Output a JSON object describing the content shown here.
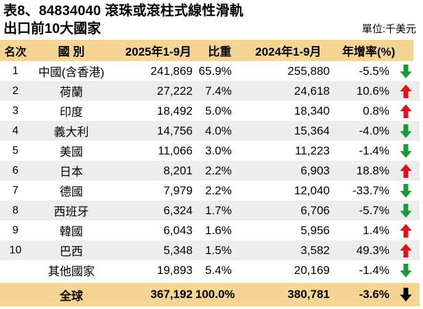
{
  "page": {
    "title_line1": "表8、84834040 滾珠或滾柱式線性滑軌",
    "title_line2": "出口前10大國家",
    "unit_label": "單位:千美元"
  },
  "colors": {
    "band_bg": "#F5D593",
    "stripe_bg": "#EDEDED",
    "up_arrow": "#E21219",
    "down_arrow": "#189A3C",
    "total_arrow": "#000000"
  },
  "chart_data": {
    "type": "table",
    "title": "表8、84834040 滾珠或滾柱式線性滑軌 出口前10大國家",
    "unit": "千美元",
    "columns": [
      "名次",
      "國 別",
      "2025年1-9月",
      "比重",
      "2024年1-9月",
      "年增率(%)"
    ],
    "rows": [
      {
        "rank": "1",
        "country": "中國(含香港)",
        "v2025": "241,869",
        "share": "65.9%",
        "v2024": "255,880",
        "yoy": "-5.5%",
        "trend": "down"
      },
      {
        "rank": "2",
        "country": "荷蘭",
        "v2025": "27,222",
        "share": "7.4%",
        "v2024": "24,618",
        "yoy": "10.6%",
        "trend": "up"
      },
      {
        "rank": "3",
        "country": "印度",
        "v2025": "18,492",
        "share": "5.0%",
        "v2024": "18,340",
        "yoy": "0.8%",
        "trend": "up"
      },
      {
        "rank": "4",
        "country": "義大利",
        "v2025": "14,756",
        "share": "4.0%",
        "v2024": "15,364",
        "yoy": "-4.0%",
        "trend": "down"
      },
      {
        "rank": "5",
        "country": "美國",
        "v2025": "11,066",
        "share": "3.0%",
        "v2024": "11,223",
        "yoy": "-1.4%",
        "trend": "down"
      },
      {
        "rank": "6",
        "country": "日本",
        "v2025": "8,201",
        "share": "2.2%",
        "v2024": "6,903",
        "yoy": "18.8%",
        "trend": "up"
      },
      {
        "rank": "7",
        "country": "德國",
        "v2025": "7,979",
        "share": "2.2%",
        "v2024": "12,040",
        "yoy": "-33.7%",
        "trend": "down"
      },
      {
        "rank": "8",
        "country": "西班牙",
        "v2025": "6,324",
        "share": "1.7%",
        "v2024": "6,706",
        "yoy": "-5.7%",
        "trend": "down"
      },
      {
        "rank": "9",
        "country": "韓國",
        "v2025": "6,043",
        "share": "1.6%",
        "v2024": "5,956",
        "yoy": "1.4%",
        "trend": "up"
      },
      {
        "rank": "10",
        "country": "巴西",
        "v2025": "5,348",
        "share": "1.5%",
        "v2024": "3,582",
        "yoy": "49.3%",
        "trend": "up"
      },
      {
        "rank": "",
        "country": "其他國家",
        "v2025": "19,893",
        "share": "5.4%",
        "v2024": "20,169",
        "yoy": "-1.4%",
        "trend": "down"
      }
    ],
    "total": {
      "rank": "",
      "country": "全球",
      "v2025": "367,192",
      "share": "100.0%",
      "v2024": "380,781",
      "yoy": "-3.6%",
      "trend": "down"
    }
  }
}
